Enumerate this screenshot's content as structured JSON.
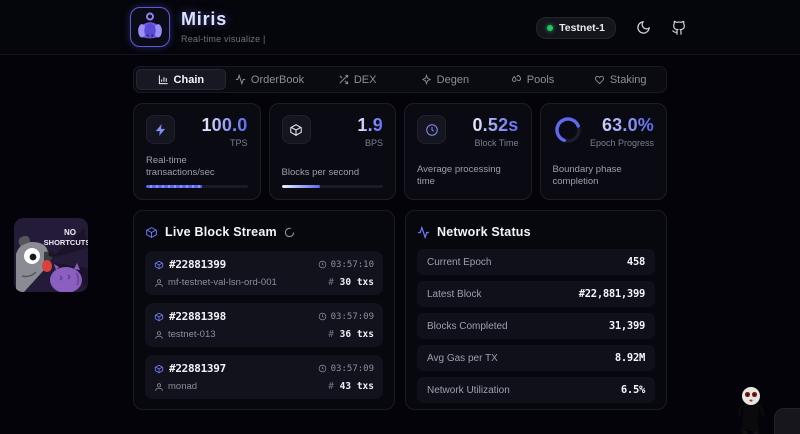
{
  "header": {
    "title": "Miris",
    "subtitle": "Real-time visualize |",
    "network_badge": "Testnet-1"
  },
  "tabs": [
    {
      "label": "Chain",
      "icon": "bar-chart-icon",
      "active": true
    },
    {
      "label": "OrderBook",
      "icon": "activity-icon",
      "active": false
    },
    {
      "label": "DEX",
      "icon": "shuffle-icon",
      "active": false
    },
    {
      "label": "Degen",
      "icon": "sparkle-icon",
      "active": false
    },
    {
      "label": "Pools",
      "icon": "droplets-icon",
      "active": false
    },
    {
      "label": "Staking",
      "icon": "heart-icon",
      "active": false
    }
  ],
  "stats": [
    {
      "value": "100.0",
      "unit": "TPS",
      "description": "Real-time transactions/sec",
      "icon": "zap-icon",
      "progress": 55
    },
    {
      "value": "1.9",
      "unit": "BPS",
      "description": "Blocks per second",
      "icon": "cube-icon",
      "progress": 38
    },
    {
      "value": "0.52s",
      "unit": "Block Time",
      "description": "Average processing time",
      "icon": "clock-icon"
    },
    {
      "value": "63.0%",
      "unit": "Epoch Progress",
      "description": "Boundary phase completion",
      "icon": "progress-ring",
      "ring": 63
    }
  ],
  "block_stream": {
    "title": "Live Block Stream",
    "hash_prefix": "#",
    "blocks": [
      {
        "number": "#22881399",
        "validator": "mf-testnet-val-lsn-ord-001",
        "time": "03:57:10",
        "txs": "30 txs"
      },
      {
        "number": "#22881398",
        "validator": "testnet-013",
        "time": "03:57:09",
        "txs": "36 txs"
      },
      {
        "number": "#22881397",
        "validator": "monad",
        "time": "03:57:09",
        "txs": "43 txs"
      }
    ]
  },
  "network_status": {
    "title": "Network Status",
    "rows": [
      {
        "label": "Current Epoch",
        "value": "458"
      },
      {
        "label": "Latest Block",
        "value": "#22,881,399"
      },
      {
        "label": "Blocks Completed",
        "value": "31,399"
      },
      {
        "label": "Avg Gas per TX",
        "value": "8.92M"
      },
      {
        "label": "Network Utilization",
        "value": "6.5%"
      }
    ]
  },
  "stickers": {
    "no_shortcuts_line1": "NO",
    "no_shortcuts_line2": "SHORTCUTS"
  },
  "colors": {
    "accent": "#6366f1",
    "accent_light": "#818cf8",
    "status_green": "#22c55e",
    "page_bg": "#030309",
    "card_bg": "#0a0a12"
  }
}
